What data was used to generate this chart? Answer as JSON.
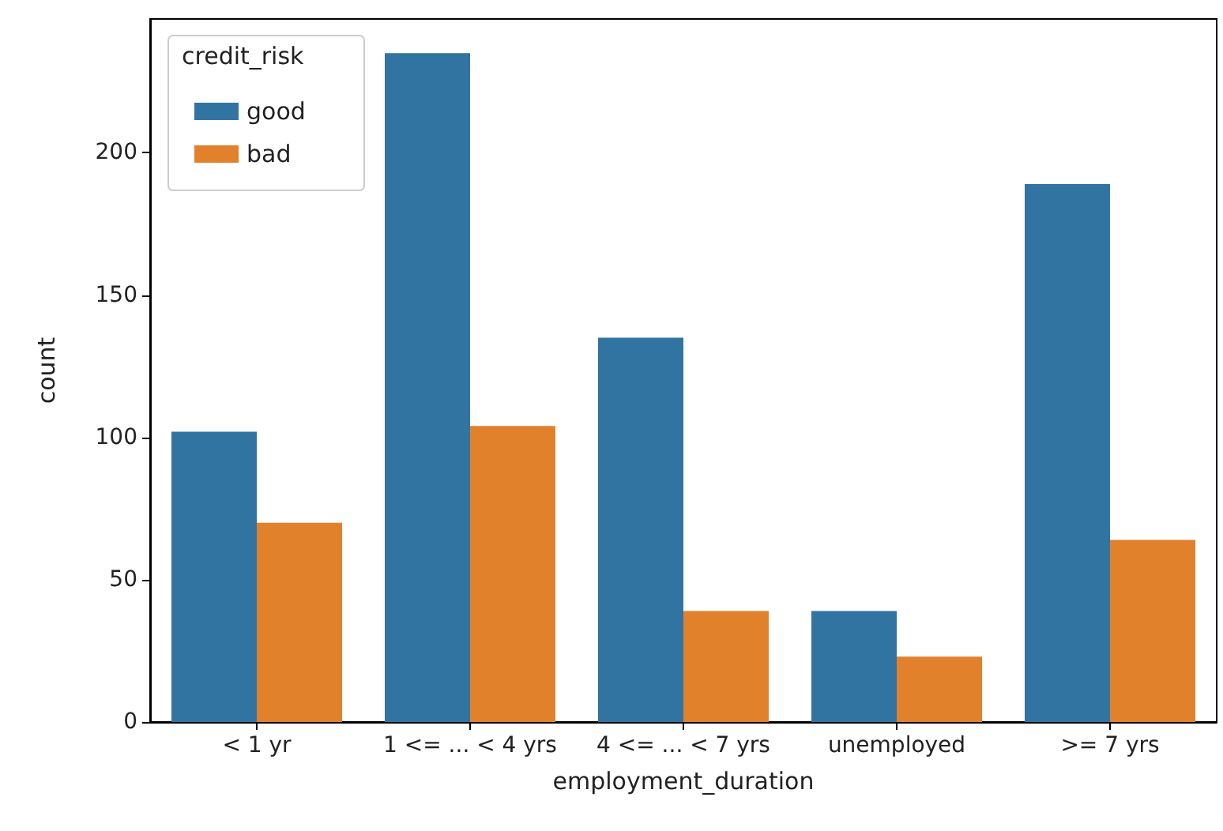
{
  "chart_data": {
    "type": "bar",
    "xlabel": "employment_duration",
    "ylabel": "count",
    "legend_title": "credit_risk",
    "categories": [
      "< 1 yr",
      "1 <= ... < 4 yrs",
      "4 <= ... < 7 yrs",
      "unemployed",
      ">= 7 yrs"
    ],
    "series": [
      {
        "name": "good",
        "color": "#3274a1",
        "values": [
          102,
          235,
          135,
          39,
          189
        ]
      },
      {
        "name": "bad",
        "color": "#e1812c",
        "values": [
          70,
          104,
          39,
          23,
          64
        ]
      }
    ],
    "ylim": [
      0,
      247
    ],
    "yticks": [
      0,
      50,
      100,
      150,
      200
    ],
    "grid": false,
    "legend": "top left"
  }
}
